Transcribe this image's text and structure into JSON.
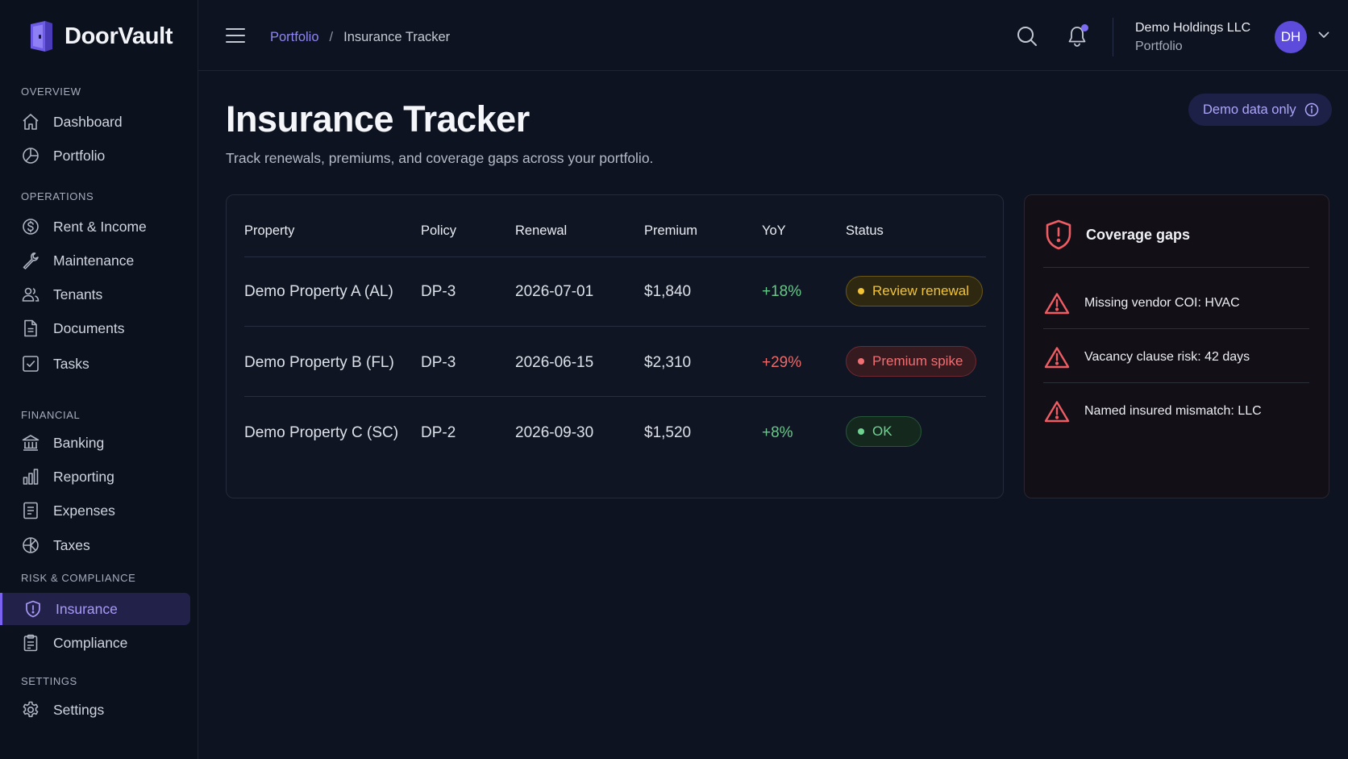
{
  "app": {
    "name": "DoorVault"
  },
  "sidebar": {
    "sections": {
      "overview": "OVERVIEW",
      "operations": "OPERATIONS",
      "financial": "FINANCIAL",
      "risk": "RISK & COMPLIANCE",
      "settings": "SETTINGS"
    },
    "items": [
      {
        "label": "Dashboard",
        "icon": "home-icon"
      },
      {
        "label": "Portfolio",
        "icon": "pie-chart-icon"
      },
      {
        "label": "Rent & Income",
        "icon": "dollar-circle-icon"
      },
      {
        "label": "Maintenance",
        "icon": "wrench-icon"
      },
      {
        "label": "Tenants",
        "icon": "users-icon"
      },
      {
        "label": "Documents",
        "icon": "document-icon"
      },
      {
        "label": "Tasks",
        "icon": "checkbox-icon"
      },
      {
        "label": "Banking",
        "icon": "bank-icon"
      },
      {
        "label": "Reporting",
        "icon": "bar-chart-icon"
      },
      {
        "label": "Expenses",
        "icon": "receipt-icon"
      },
      {
        "label": "Taxes",
        "icon": "tax-icon"
      },
      {
        "label": "Insurance",
        "icon": "shield-icon",
        "active": true
      },
      {
        "label": "Compliance",
        "icon": "clipboard-icon"
      },
      {
        "label": "Settings",
        "icon": "gear-icon"
      }
    ]
  },
  "header": {
    "breadcrumb": {
      "parent": "Portfolio",
      "separator": "/",
      "current": "Insurance Tracker"
    },
    "account": {
      "name": "Demo Holdings LLC",
      "subtitle": "Portfolio",
      "initials": "DH"
    }
  },
  "page": {
    "title": "Insurance Tracker",
    "subtitle": "Track renewals, premiums, and coverage gaps across your portfolio.",
    "demo_badge": "Demo data only"
  },
  "table": {
    "columns": [
      "Property",
      "Policy",
      "Renewal",
      "Premium",
      "YoY",
      "Status"
    ],
    "rows": [
      {
        "property": "Demo Property A (AL)",
        "policy": "DP-3",
        "renewal": "2026-07-01",
        "premium": "$1,840",
        "yoy": "+18%",
        "status": "Review renewal"
      },
      {
        "property": "Demo Property B (FL)",
        "policy": "DP-3",
        "renewal": "2026-06-15",
        "premium": "$2,310",
        "yoy": "+29%",
        "status": "Premium spike"
      },
      {
        "property": "Demo Property C (SC)",
        "policy": "DP-2",
        "renewal": "2026-09-30",
        "premium": "$1,520",
        "yoy": "+8%",
        "status": "OK"
      }
    ]
  },
  "coverage": {
    "title": "Coverage gaps",
    "items": [
      "Missing vendor COI: HVAC",
      "Vacancy clause risk: 42 days",
      "Named insured mismatch: LLC"
    ]
  },
  "colors": {
    "accent": "#7a63f0",
    "warning": "#f2c336",
    "danger": "#f06f73",
    "success": "#6fd291"
  }
}
